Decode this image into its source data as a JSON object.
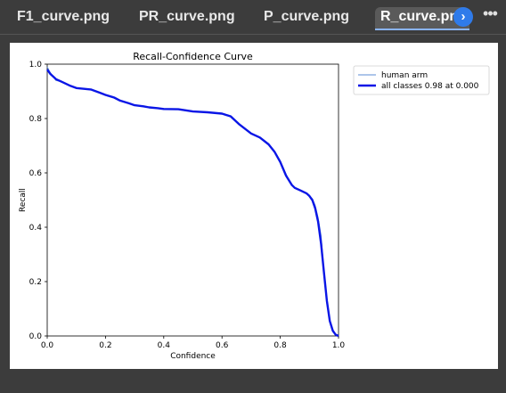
{
  "tabs": [
    {
      "label": "F1_curve.png",
      "active": false
    },
    {
      "label": "PR_curve.png",
      "active": false
    },
    {
      "label": "P_curve.png",
      "active": false
    },
    {
      "label": "R_curve.pn",
      "active": true
    }
  ],
  "toolbar": {
    "scroll_icon": "chevron-right-icon",
    "scroll_glyph": "›",
    "more_icon": "more-horizontal-icon",
    "more_glyph": "•••"
  },
  "colors": {
    "accent": "#2f7bea",
    "tab_active_bg": "#5a5a5a",
    "series_thin": "#5b8bd6",
    "series_thick": "#0a16e6"
  },
  "chart_data": {
    "type": "line",
    "title": "Recall-Confidence Curve",
    "xlabel": "Confidence",
    "ylabel": "Recall",
    "xlim": [
      0.0,
      1.0
    ],
    "ylim": [
      0.0,
      1.0
    ],
    "xticks": [
      "0.0",
      "0.2",
      "0.4",
      "0.6",
      "0.8",
      "1.0"
    ],
    "yticks": [
      "0.0",
      "0.2",
      "0.4",
      "0.6",
      "0.8",
      "1.0"
    ],
    "grid": false,
    "legend_position": "outside-upper-right",
    "series": [
      {
        "name": "human arm",
        "style": "thin",
        "x": [
          0.0,
          0.01,
          0.03,
          0.05,
          0.08,
          0.1,
          0.15,
          0.18,
          0.2,
          0.23,
          0.25,
          0.28,
          0.3,
          0.33,
          0.35,
          0.38,
          0.4,
          0.45,
          0.5,
          0.55,
          0.6,
          0.63,
          0.66,
          0.7,
          0.73,
          0.76,
          0.78,
          0.8,
          0.82,
          0.84,
          0.85,
          0.87,
          0.89,
          0.9,
          0.91,
          0.92,
          0.93,
          0.94,
          0.95,
          0.96,
          0.97,
          0.98,
          0.99,
          1.0
        ],
        "y": [
          0.99,
          0.97,
          0.94,
          0.935,
          0.92,
          0.91,
          0.908,
          0.895,
          0.885,
          0.875,
          0.865,
          0.855,
          0.848,
          0.845,
          0.84,
          0.838,
          0.835,
          0.834,
          0.826,
          0.823,
          0.818,
          0.81,
          0.78,
          0.745,
          0.73,
          0.705,
          0.68,
          0.645,
          0.595,
          0.555,
          0.545,
          0.535,
          0.525,
          0.515,
          0.505,
          0.48,
          0.435,
          0.37,
          0.24,
          0.12,
          0.05,
          0.015,
          0.005,
          0.0
        ]
      },
      {
        "name": "all classes 0.98 at 0.000",
        "style": "thick",
        "x": [
          0.0,
          0.01,
          0.03,
          0.05,
          0.08,
          0.1,
          0.15,
          0.18,
          0.2,
          0.23,
          0.25,
          0.28,
          0.3,
          0.33,
          0.35,
          0.38,
          0.4,
          0.45,
          0.5,
          0.55,
          0.6,
          0.63,
          0.66,
          0.7,
          0.73,
          0.76,
          0.78,
          0.8,
          0.82,
          0.84,
          0.85,
          0.87,
          0.89,
          0.9,
          0.91,
          0.92,
          0.93,
          0.94,
          0.95,
          0.96,
          0.97,
          0.98,
          0.99,
          1.0
        ],
        "y": [
          0.98,
          0.965,
          0.945,
          0.935,
          0.92,
          0.912,
          0.907,
          0.895,
          0.887,
          0.877,
          0.866,
          0.856,
          0.849,
          0.845,
          0.841,
          0.838,
          0.835,
          0.834,
          0.826,
          0.823,
          0.818,
          0.808,
          0.778,
          0.745,
          0.73,
          0.705,
          0.678,
          0.64,
          0.59,
          0.555,
          0.545,
          0.535,
          0.525,
          0.515,
          0.5,
          0.47,
          0.42,
          0.34,
          0.235,
          0.13,
          0.055,
          0.02,
          0.005,
          0.0
        ]
      }
    ]
  }
}
